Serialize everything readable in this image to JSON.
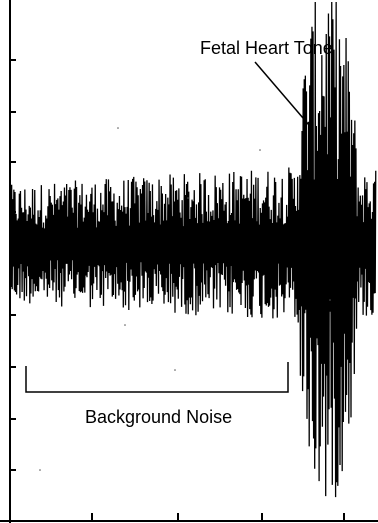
{
  "chart_data": {
    "type": "line",
    "title": "",
    "xlabel": "",
    "ylabel": "",
    "grid": false,
    "legend": "none",
    "signal_color": "#000000",
    "annotations": [
      {
        "id": "fetal-heart-tone",
        "text": "Fetal Heart Tone"
      },
      {
        "id": "background-noise",
        "text": "Background Noise"
      }
    ],
    "regions": [
      {
        "id": "background-noise",
        "x_start": 0.04,
        "x_end": 0.76,
        "amplitude": 0.27
      },
      {
        "id": "fetal-heart-tone",
        "x_start": 0.8,
        "x_end": 0.93,
        "amplitude": 1.0
      }
    ]
  }
}
